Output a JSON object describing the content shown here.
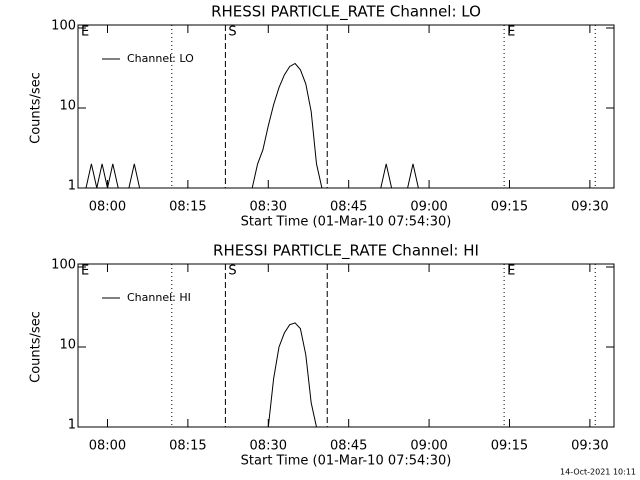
{
  "chart_data": [
    {
      "type": "line",
      "title": "RHESSI PARTICLE_RATE Channel: LO",
      "xlabel": "Start Time (01-Mar-10 07:54:30)",
      "ylabel": "Counts/sec",
      "ylog": true,
      "ylim": [
        1,
        100
      ],
      "yticks": [
        1,
        10,
        100
      ],
      "xlim": [
        "07:54:30",
        "09:34:30"
      ],
      "xticks": [
        "08:00",
        "08:15",
        "08:30",
        "08:45",
        "09:00",
        "09:15",
        "09:30"
      ],
      "legend": "upper left",
      "markers": [
        {
          "x": "07:54:30",
          "label": "E",
          "style": "dotted"
        },
        {
          "x": "08:12",
          "style": "dotted"
        },
        {
          "x": "08:22",
          "label": "S",
          "style": "dashed"
        },
        {
          "x": "08:41",
          "style": "dashed"
        },
        {
          "x": "09:14",
          "label": "E",
          "style": "dotted"
        },
        {
          "x": "09:31",
          "style": "dotted"
        }
      ],
      "x": [
        "07:56",
        "07:57",
        "07:58",
        "07:59",
        "08:00",
        "08:01",
        "08:02",
        "08:03",
        "08:04",
        "08:05",
        "08:06",
        "08:27",
        "08:28",
        "08:29",
        "08:30",
        "08:31",
        "08:32",
        "08:33",
        "08:34",
        "08:35",
        "08:36",
        "08:37",
        "08:38",
        "08:39",
        "08:40",
        "08:41",
        "08:51",
        "08:52",
        "08:53",
        "08:56",
        "08:57",
        "08:58"
      ],
      "series": [
        {
          "name": "Channel: LO",
          "color": "#000000",
          "values": [
            1,
            2,
            1,
            2,
            1,
            2,
            1,
            null,
            1,
            2,
            1,
            1,
            2,
            3,
            6,
            11,
            18,
            26,
            33,
            36,
            30,
            20,
            9,
            2,
            1,
            null,
            1,
            2,
            1,
            1,
            2,
            1
          ]
        }
      ]
    },
    {
      "type": "line",
      "title": "RHESSI PARTICLE_RATE Channel: HI",
      "xlabel": "Start Time (01-Mar-10 07:54:30)",
      "ylabel": "Counts/sec",
      "ylog": true,
      "ylim": [
        1,
        100
      ],
      "yticks": [
        1,
        10,
        100
      ],
      "xlim": [
        "07:54:30",
        "09:34:30"
      ],
      "xticks": [
        "08:00",
        "08:15",
        "08:30",
        "08:45",
        "09:00",
        "09:15",
        "09:30"
      ],
      "legend": "upper left",
      "markers": [
        {
          "x": "07:54:30",
          "label": "E",
          "style": "dotted"
        },
        {
          "x": "08:12",
          "style": "dotted"
        },
        {
          "x": "08:22",
          "label": "S",
          "style": "dashed"
        },
        {
          "x": "08:41",
          "style": "dashed"
        },
        {
          "x": "09:14",
          "label": "E",
          "style": "dotted"
        },
        {
          "x": "09:31",
          "style": "dotted"
        }
      ],
      "x": [
        "08:30",
        "08:31",
        "08:32",
        "08:33",
        "08:34",
        "08:35",
        "08:36",
        "08:37",
        "08:38",
        "08:39"
      ],
      "series": [
        {
          "name": "Channel: HI",
          "color": "#000000",
          "values": [
            1,
            4,
            10,
            15,
            19,
            20,
            17,
            8,
            2,
            1
          ]
        }
      ]
    }
  ],
  "footer": "14-Oct-2021 10:11"
}
